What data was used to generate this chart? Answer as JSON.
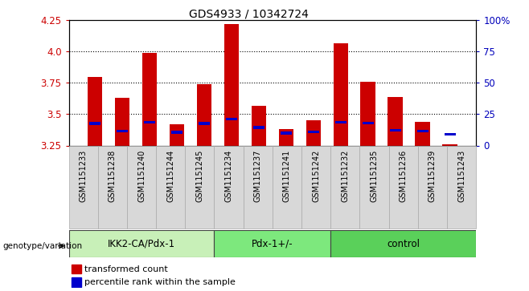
{
  "title": "GDS4933 / 10342724",
  "samples": [
    "GSM1151233",
    "GSM1151238",
    "GSM1151240",
    "GSM1151244",
    "GSM1151245",
    "GSM1151234",
    "GSM1151237",
    "GSM1151241",
    "GSM1151242",
    "GSM1151232",
    "GSM1151235",
    "GSM1151236",
    "GSM1151239",
    "GSM1151243"
  ],
  "red_values": [
    3.8,
    3.63,
    3.99,
    3.42,
    3.74,
    4.22,
    3.57,
    3.38,
    3.45,
    4.07,
    3.76,
    3.64,
    3.44,
    3.26
  ],
  "blue_values": [
    3.425,
    3.365,
    3.435,
    3.355,
    3.425,
    3.46,
    3.395,
    3.35,
    3.36,
    3.435,
    3.43,
    3.37,
    3.365,
    3.34
  ],
  "groups": [
    {
      "label": "IKK2-CA/Pdx-1",
      "start": 0,
      "end": 5,
      "color": "#c8f0b8"
    },
    {
      "label": "Pdx-1+/-",
      "start": 5,
      "end": 9,
      "color": "#7de87d"
    },
    {
      "label": "control",
      "start": 9,
      "end": 14,
      "color": "#5ad05a"
    }
  ],
  "ylim_left": [
    3.25,
    4.25
  ],
  "ylim_right": [
    0,
    100
  ],
  "yticks_left": [
    3.25,
    3.5,
    3.75,
    4.0,
    4.25
  ],
  "yticks_right": [
    0,
    25,
    50,
    75,
    100
  ],
  "ytick_labels_right": [
    "0",
    "25",
    "50",
    "75",
    "100%"
  ],
  "bar_width": 0.55,
  "bar_color": "#cc0000",
  "blue_color": "#0000cc",
  "grid_color": "black",
  "legend_red": "transformed count",
  "legend_blue": "percentile rank within the sample",
  "genotype_label": "genotype/variation",
  "left_tick_color": "#cc0000",
  "right_tick_color": "#0000bb",
  "tick_label_bg": "#d8d8d8"
}
